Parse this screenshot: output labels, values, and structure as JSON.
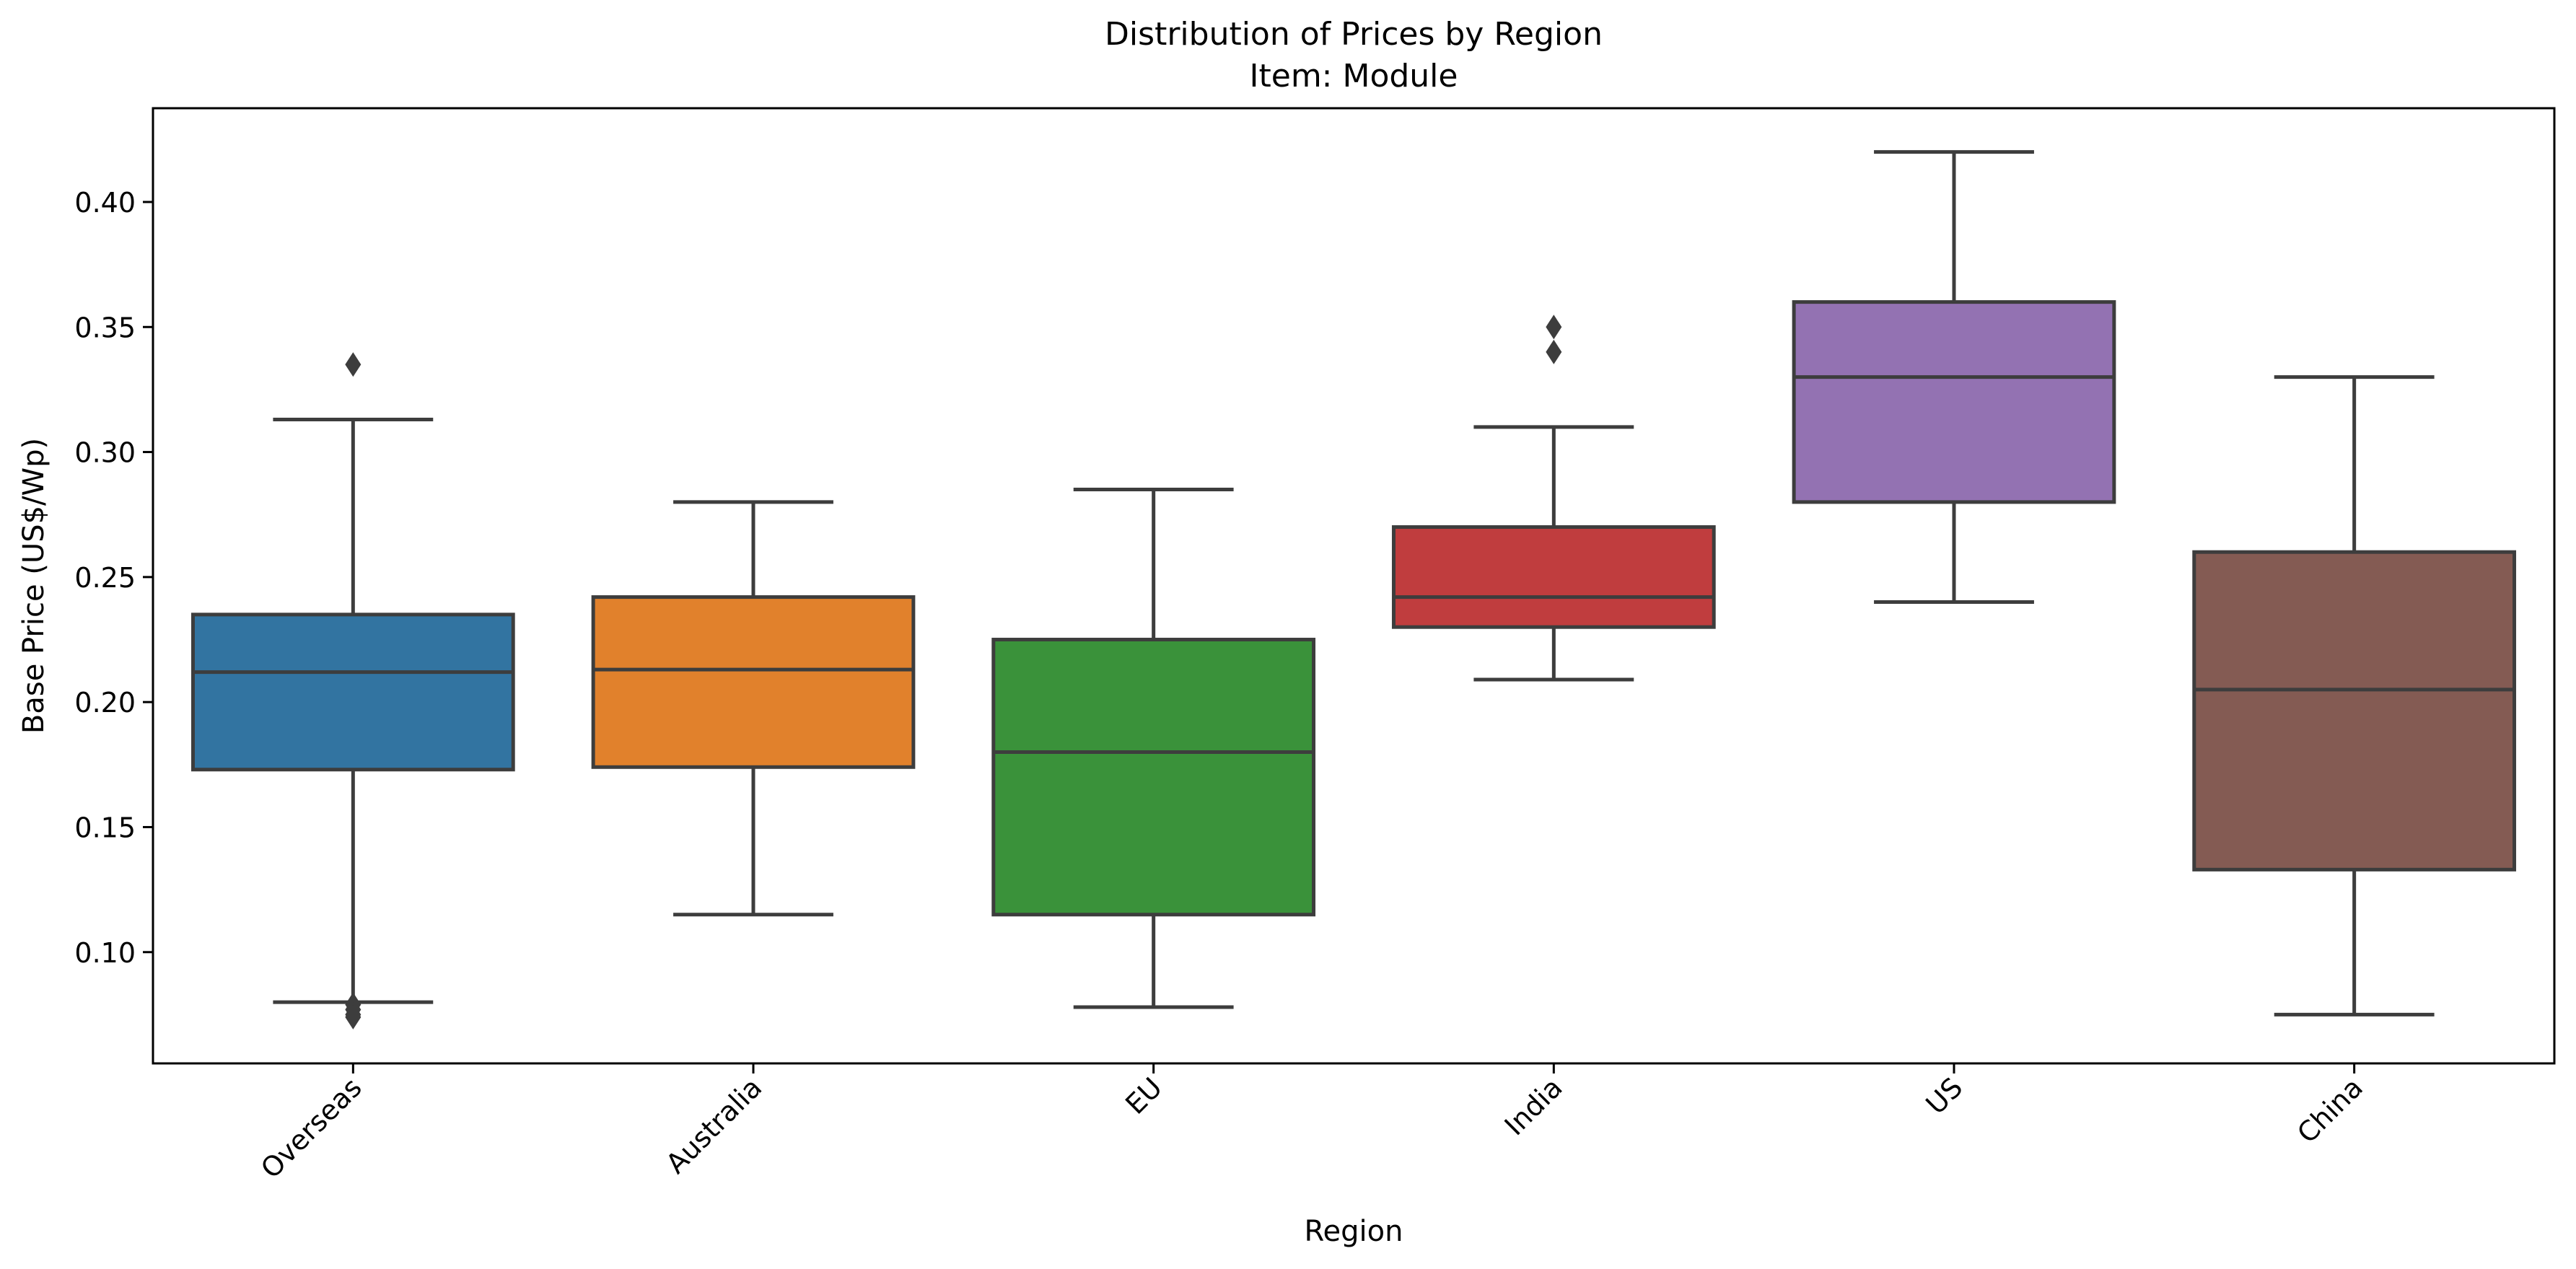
{
  "chart_data": {
    "type": "box",
    "title": "Distribution of Prices by Region",
    "subtitle": "Item: Module",
    "xlabel": "Region",
    "ylabel": "Base Price (US$/Wp)",
    "ylim": [
      0.0555,
      0.4375
    ],
    "yticks": [
      0.1,
      0.15,
      0.2,
      0.25,
      0.3,
      0.35,
      0.4
    ],
    "ytick_labels": [
      "0.10",
      "0.15",
      "0.20",
      "0.25",
      "0.30",
      "0.35",
      "0.40"
    ],
    "grid": false,
    "categories": [
      "Overseas",
      "Australia",
      "EU",
      "India",
      "US",
      "China"
    ],
    "series": [
      {
        "category": "Overseas",
        "whisker_low": 0.08,
        "q1": 0.173,
        "median": 0.212,
        "q3": 0.235,
        "whisker_high": 0.313,
        "outliers": [
          0.335,
          0.079,
          0.077,
          0.075,
          0.074
        ]
      },
      {
        "category": "Australia",
        "whisker_low": 0.115,
        "q1": 0.174,
        "median": 0.213,
        "q3": 0.242,
        "whisker_high": 0.28,
        "outliers": []
      },
      {
        "category": "EU",
        "whisker_low": 0.078,
        "q1": 0.115,
        "median": 0.18,
        "q3": 0.225,
        "whisker_high": 0.285,
        "outliers": []
      },
      {
        "category": "India",
        "whisker_low": 0.209,
        "q1": 0.23,
        "median": 0.242,
        "q3": 0.27,
        "whisker_high": 0.31,
        "outliers": [
          0.34,
          0.35
        ]
      },
      {
        "category": "US",
        "whisker_low": 0.24,
        "q1": 0.28,
        "median": 0.33,
        "q3": 0.36,
        "whisker_high": 0.42,
        "outliers": []
      },
      {
        "category": "China",
        "whisker_low": 0.075,
        "q1": 0.133,
        "median": 0.205,
        "q3": 0.26,
        "whisker_high": 0.33,
        "outliers": []
      }
    ],
    "colors": [
      "#3274a1",
      "#e1812c",
      "#3a923a",
      "#c03d3e",
      "#9372b2",
      "#845b53"
    ],
    "line_color": "#3d3d3d"
  }
}
